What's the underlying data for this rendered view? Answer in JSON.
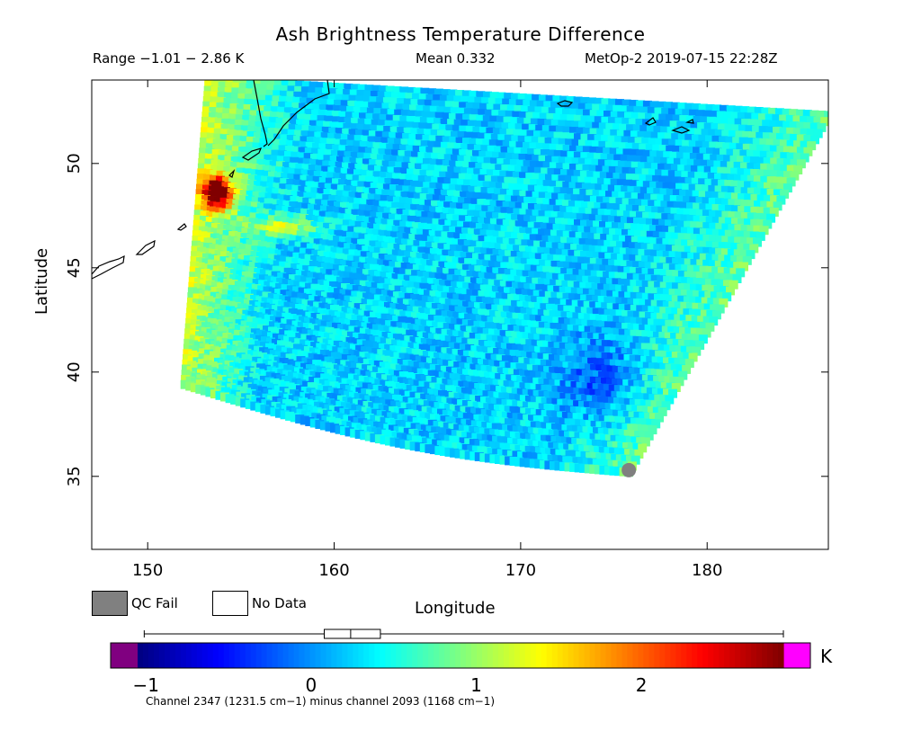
{
  "header": {
    "title": "Ash Brightness Temperature Difference",
    "range": "Range −1.01 − 2.86 K",
    "mean": "Mean 0.332",
    "satellite_time": "MetOp-2 2019-07-15 22:28Z"
  },
  "legend": {
    "qc_fail": "QC Fail",
    "no_data": "No Data",
    "qc_fail_color": "#808080",
    "no_data_color": "#ffffff"
  },
  "colorbar": {
    "unit": "K",
    "caption": "Channel 2347 (1231.5 cm−1) minus channel 2093 (1168 cm−1)",
    "ticks": [
      {
        "value": -1,
        "label": "−1"
      },
      {
        "value": 0,
        "label": "0"
      },
      {
        "value": 1,
        "label": "1"
      },
      {
        "value": 2,
        "label": "2"
      }
    ],
    "vmin": -1.05,
    "vmax": 2.86,
    "under_color": "#800080",
    "over_color": "#ff00ff",
    "boxplot": {
      "min": -1.01,
      "q1": 0.08,
      "median": 0.24,
      "q3": 0.42,
      "max": 2.86
    }
  },
  "chart_data": {
    "type": "heatmap",
    "title": "Ash Brightness Temperature Difference",
    "xlabel": "Longitude",
    "ylabel": "Latitude",
    "xlim": [
      147,
      186.5
    ],
    "ylim": [
      31.5,
      54
    ],
    "xticks": [
      {
        "value": 150,
        "label": "150"
      },
      {
        "value": 160,
        "label": "160"
      },
      {
        "value": 170,
        "label": "170"
      },
      {
        "value": 180,
        "label": "180"
      }
    ],
    "yticks": [
      {
        "value": 35,
        "label": "35"
      },
      {
        "value": 40,
        "label": "40"
      },
      {
        "value": 45,
        "label": "45"
      },
      {
        "value": 50,
        "label": "50"
      }
    ],
    "swath_corners": {
      "top_left": [
        153.3,
        54
      ],
      "bottom_left": [
        152,
        39.4
      ],
      "bottom_right": [
        175.8,
        35.2
      ],
      "top_right": [
        186.5,
        52.3
      ]
    },
    "features": [
      {
        "name": "hot spot",
        "lon": 153.8,
        "lat": 48.5,
        "value": 2.8
      },
      {
        "name": "warm plume",
        "lon": 157.5,
        "lat": 46.9,
        "value": 1.4
      },
      {
        "name": "cold area",
        "lon": 174.5,
        "lat": 39.6,
        "value": -0.4
      }
    ],
    "qc_fail_point": {
      "lon": 175.8,
      "lat": 35.3
    },
    "colormap": "jet",
    "grid": false
  }
}
